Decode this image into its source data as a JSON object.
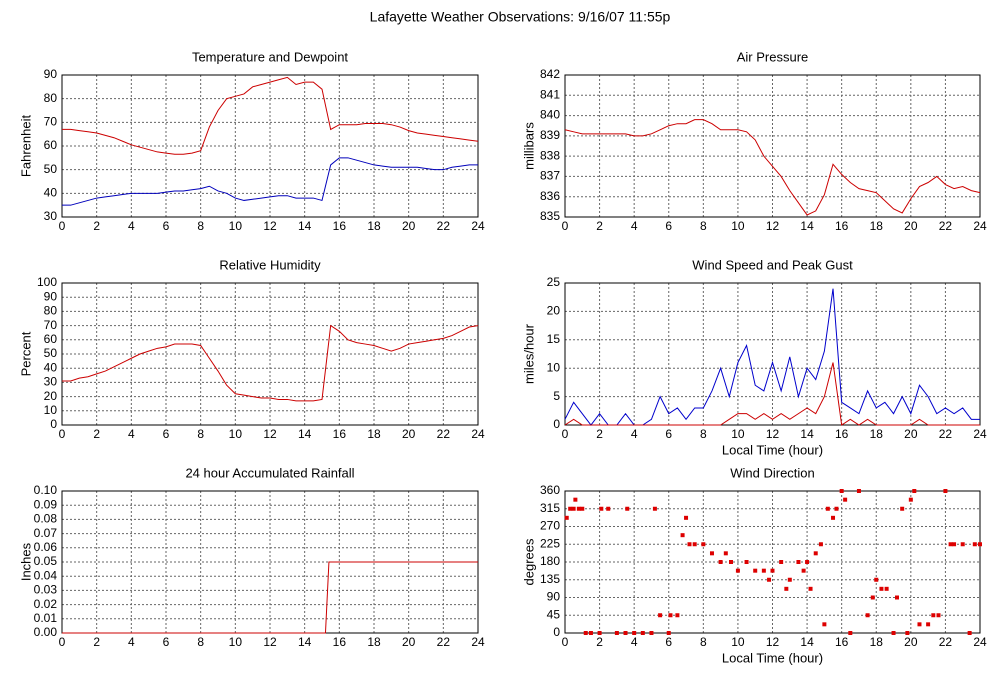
{
  "title": "Lafayette Weather Observations: 9/16/07 11:55p",
  "chart_data": [
    {
      "type": "line",
      "title": "Temperature and Dewpoint",
      "ylabel": "Fahrenheit",
      "x": [
        0,
        0.5,
        1,
        1.5,
        2,
        2.5,
        3,
        3.5,
        4,
        4.5,
        5,
        5.5,
        6,
        6.5,
        7,
        7.5,
        8,
        8.5,
        9,
        9.5,
        10,
        10.5,
        11,
        11.5,
        12,
        12.5,
        13,
        13.5,
        14,
        14.5,
        15,
        15.5,
        16,
        16.5,
        17,
        17.5,
        18,
        18.5,
        19,
        19.5,
        20,
        20.5,
        21,
        21.5,
        22,
        22.5,
        23,
        23.5,
        24
      ],
      "series": [
        {
          "color": "#cc0000",
          "values": [
            67,
            67,
            66.5,
            66,
            65.5,
            64.5,
            63.5,
            62,
            60.5,
            59.5,
            58.5,
            57.5,
            57,
            56.5,
            56.5,
            57,
            58,
            68,
            75,
            80,
            81,
            82,
            85,
            86,
            87,
            88,
            89,
            86,
            87,
            87,
            84,
            67,
            69,
            69,
            69,
            69.5,
            69.5,
            69.5,
            69,
            68,
            66.5,
            65.5,
            65,
            64.5,
            64,
            63.5,
            63,
            62.5,
            62
          ]
        },
        {
          "color": "#0000bb",
          "values": [
            35,
            35,
            36,
            37,
            38,
            38.5,
            39,
            39.5,
            40,
            40,
            40,
            40,
            40.5,
            41,
            41,
            41.5,
            42,
            43,
            41,
            40,
            38,
            37,
            37.5,
            38,
            38.5,
            39,
            39,
            38,
            38,
            38,
            37,
            52,
            55,
            55,
            54,
            53,
            52,
            51.5,
            51,
            51,
            51,
            51,
            50.5,
            50,
            50,
            51,
            51.5,
            52,
            52
          ]
        }
      ],
      "xlim": [
        0,
        24
      ],
      "xticks": [
        0,
        2,
        4,
        6,
        8,
        10,
        12,
        14,
        16,
        18,
        20,
        22,
        24
      ],
      "ylim": [
        30,
        90
      ],
      "yticks": [
        30,
        40,
        50,
        60,
        70,
        80,
        90
      ],
      "grid": true
    },
    {
      "type": "line",
      "title": "Air Pressure",
      "ylabel": "millibars",
      "x": [
        0,
        0.5,
        1,
        1.5,
        2,
        2.5,
        3,
        3.5,
        4,
        4.5,
        5,
        5.5,
        6,
        6.5,
        7,
        7.5,
        8,
        8.5,
        9,
        9.5,
        10,
        10.5,
        11,
        11.5,
        12,
        12.5,
        13,
        13.5,
        14,
        14.5,
        15,
        15.5,
        16,
        16.5,
        17,
        17.5,
        18,
        18.5,
        19,
        19.5,
        20,
        20.5,
        21,
        21.5,
        22,
        22.5,
        23,
        23.5,
        24
      ],
      "series": [
        {
          "color": "#cc0000",
          "values": [
            839.3,
            839.2,
            839.1,
            839.1,
            839.1,
            839.1,
            839.1,
            839.1,
            839.0,
            839.0,
            839.1,
            839.3,
            839.5,
            839.6,
            839.6,
            839.8,
            839.8,
            839.6,
            839.3,
            839.3,
            839.3,
            839.2,
            838.8,
            838.0,
            837.5,
            837.0,
            836.3,
            835.7,
            835.1,
            835.3,
            836.1,
            837.6,
            837.1,
            836.7,
            836.4,
            836.3,
            836.2,
            835.8,
            835.4,
            835.2,
            835.9,
            836.5,
            836.7,
            837.0,
            836.6,
            836.4,
            836.5,
            836.3,
            836.2
          ]
        }
      ],
      "xlim": [
        0,
        24
      ],
      "xticks": [
        0,
        2,
        4,
        6,
        8,
        10,
        12,
        14,
        16,
        18,
        20,
        22,
        24
      ],
      "ylim": [
        835,
        842
      ],
      "yticks": [
        835,
        836,
        837,
        838,
        839,
        840,
        841,
        842
      ],
      "grid": true
    },
    {
      "type": "line",
      "title": "Relative Humidity",
      "ylabel": "Percent",
      "x": [
        0,
        0.5,
        1,
        1.5,
        2,
        2.5,
        3,
        3.5,
        4,
        4.5,
        5,
        5.5,
        6,
        6.5,
        7,
        7.5,
        8,
        8.5,
        9,
        9.5,
        10,
        10.5,
        11,
        11.5,
        12,
        12.5,
        13,
        13.5,
        14,
        14.5,
        15,
        15.5,
        16,
        16.5,
        17,
        17.5,
        18,
        18.5,
        19,
        19.5,
        20,
        20.5,
        21,
        21.5,
        22,
        22.5,
        23,
        23.5,
        24
      ],
      "series": [
        {
          "color": "#cc0000",
          "values": [
            31,
            31,
            33,
            34,
            36,
            38,
            41,
            44,
            47,
            50,
            52,
            54,
            55,
            57,
            57,
            57,
            56,
            47,
            38,
            28,
            22,
            21,
            20,
            19,
            19,
            18,
            18,
            17,
            17,
            17,
            18,
            70,
            66,
            60,
            58,
            57,
            56,
            54,
            52,
            54,
            57,
            58,
            59,
            60,
            61,
            63,
            66,
            69,
            70
          ]
        }
      ],
      "xlim": [
        0,
        24
      ],
      "xticks": [
        0,
        2,
        4,
        6,
        8,
        10,
        12,
        14,
        16,
        18,
        20,
        22,
        24
      ],
      "ylim": [
        0,
        100
      ],
      "yticks": [
        0,
        10,
        20,
        30,
        40,
        50,
        60,
        70,
        80,
        90,
        100
      ],
      "grid": true
    },
    {
      "type": "line",
      "title": "Wind Speed and Peak Gust",
      "ylabel": "miles/hour",
      "xlabel": "Local Time (hour)",
      "x": [
        0,
        0.5,
        1,
        1.5,
        2,
        2.5,
        3,
        3.5,
        4,
        4.5,
        5,
        5.5,
        6,
        6.5,
        7,
        7.5,
        8,
        8.5,
        9,
        9.5,
        10,
        10.5,
        11,
        11.5,
        12,
        12.5,
        13,
        13.5,
        14,
        14.5,
        15,
        15.5,
        16,
        16.5,
        17,
        17.5,
        18,
        18.5,
        19,
        19.5,
        20,
        20.5,
        21,
        21.5,
        22,
        22.5,
        23,
        23.5,
        24
      ],
      "series": [
        {
          "color": "#0000cc",
          "values": [
            1,
            4,
            2,
            0,
            2,
            0,
            0,
            2,
            0,
            0,
            1,
            5,
            2,
            3,
            1,
            3,
            3,
            6,
            10,
            5,
            11,
            14,
            7,
            6,
            11,
            6,
            12,
            5,
            10,
            8,
            13,
            24,
            4,
            3,
            2,
            6,
            3,
            4,
            2,
            5,
            2,
            7,
            5,
            2,
            3,
            2,
            3,
            1,
            1
          ]
        },
        {
          "color": "#cc0000",
          "values": [
            0,
            1,
            0,
            0,
            0,
            0,
            0,
            0,
            0,
            0,
            0,
            0,
            0,
            0,
            0,
            0,
            0,
            0,
            0,
            1,
            2,
            2,
            1,
            2,
            1,
            2,
            1,
            2,
            3,
            2,
            5,
            11,
            0,
            1,
            0,
            1,
            0,
            0,
            0,
            0,
            0,
            1,
            0,
            0,
            0,
            0,
            0,
            0,
            0
          ]
        }
      ],
      "xlim": [
        0,
        24
      ],
      "xticks": [
        0,
        2,
        4,
        6,
        8,
        10,
        12,
        14,
        16,
        18,
        20,
        22,
        24
      ],
      "ylim": [
        0,
        25
      ],
      "yticks": [
        0,
        5,
        10,
        15,
        20,
        25
      ],
      "grid": true
    },
    {
      "type": "line",
      "title": "24 hour Accumulated Rainfall",
      "ylabel": "Inches",
      "x": [
        0,
        15.2,
        15.4,
        24
      ],
      "series": [
        {
          "color": "#cc0000",
          "values": [
            0,
            0,
            0.05,
            0.05
          ]
        }
      ],
      "xlim": [
        0,
        24
      ],
      "xticks": [
        0,
        2,
        4,
        6,
        8,
        10,
        12,
        14,
        16,
        18,
        20,
        22,
        24
      ],
      "ylim": [
        0,
        0.1
      ],
      "yticks": [
        {
          "value": 0,
          "label": "0.00"
        },
        {
          "value": 0.01,
          "label": "0.01"
        },
        {
          "value": 0.02,
          "label": "0.02"
        },
        {
          "value": 0.03,
          "label": "0.03"
        },
        {
          "value": 0.04,
          "label": "0.04"
        },
        {
          "value": 0.05,
          "label": "0.05"
        },
        {
          "value": 0.06,
          "label": "0.06"
        },
        {
          "value": 0.07,
          "label": "0.07"
        },
        {
          "value": 0.08,
          "label": "0.08"
        },
        {
          "value": 0.09,
          "label": "0.09"
        },
        {
          "value": 0.1,
          "label": "0.10"
        }
      ],
      "grid": true
    },
    {
      "type": "scatter",
      "title": "Wind Direction",
      "ylabel": "degrees",
      "xlabel": "Local Time (hour)",
      "x": [
        0.1,
        0.3,
        0.5,
        0.6,
        0.8,
        1.0,
        1.2,
        1.5,
        2,
        2.1,
        2.5,
        3,
        3.5,
        3.6,
        4,
        4.5,
        5,
        5.2,
        5.5,
        6,
        6.1,
        6.5,
        6.8,
        7,
        7.2,
        7.5,
        8,
        8.5,
        9,
        9.3,
        9.6,
        10,
        10.5,
        11,
        11.5,
        11.8,
        12,
        12.5,
        12.8,
        13,
        13.5,
        13.8,
        14,
        14.2,
        14.5,
        14.8,
        15,
        15.2,
        15.5,
        15.7,
        16,
        16.2,
        16.5,
        17,
        17.5,
        17.8,
        18,
        18.3,
        18.6,
        19,
        19.2,
        19.5,
        19.8,
        20,
        20.2,
        20.5,
        21,
        21.3,
        21.6,
        22,
        22.3,
        22.5,
        23,
        23.4,
        23.7,
        24
      ],
      "series": [
        {
          "color": "#dd0000",
          "values": [
            292,
            315,
            315,
            338,
            315,
            315,
            0,
            0,
            0,
            315,
            315,
            0,
            0,
            315,
            0,
            0,
            0,
            315,
            45,
            0,
            45,
            45,
            248,
            292,
            225,
            225,
            225,
            202,
            180,
            202,
            180,
            158,
            180,
            158,
            158,
            135,
            158,
            180,
            112,
            135,
            180,
            158,
            180,
            112,
            202,
            225,
            22,
            315,
            292,
            315,
            360,
            338,
            0,
            360,
            45,
            90,
            135,
            112,
            112,
            0,
            90,
            315,
            0,
            338,
            360,
            22,
            22,
            45,
            45,
            360,
            225,
            225,
            225,
            0,
            225,
            225
          ]
        }
      ],
      "xlim": [
        0,
        24
      ],
      "xticks": [
        0,
        2,
        4,
        6,
        8,
        10,
        12,
        14,
        16,
        18,
        20,
        22,
        24
      ],
      "ylim": [
        0,
        360
      ],
      "yticks": [
        0,
        45,
        90,
        135,
        180,
        225,
        270,
        315,
        360
      ],
      "grid": true
    }
  ]
}
